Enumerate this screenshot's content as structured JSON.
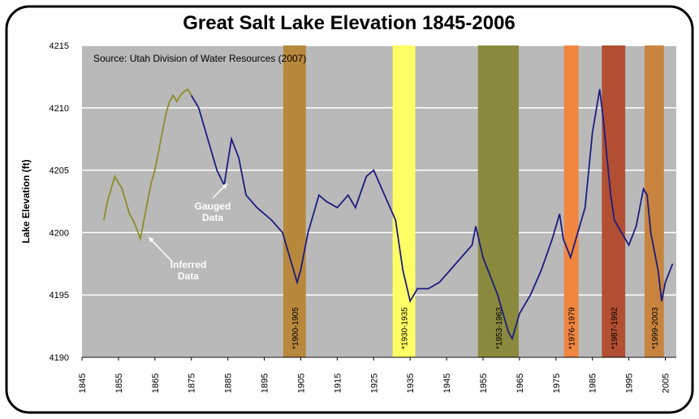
{
  "chart_data": {
    "type": "line",
    "title": "Great Salt Lake Elevation 1845-2006",
    "source": "Source: Utah Division of Water Resources (2007)",
    "ylabel": "Lake Elevation (ft)",
    "xlim": [
      1845,
      2008
    ],
    "ylim": [
      4190,
      4215
    ],
    "xticks": [
      1845,
      1855,
      1865,
      1875,
      1885,
      1895,
      1905,
      1915,
      1925,
      1935,
      1945,
      1955,
      1965,
      1975,
      1985,
      1995,
      2005
    ],
    "yticks": [
      4190,
      4195,
      4200,
      4205,
      4210,
      4215
    ],
    "grid": true,
    "background": "#b9b9b9",
    "series": [
      {
        "name": "Inferred",
        "color": "#8c8c2a",
        "x": [
          1851,
          1852,
          1853,
          1854,
          1855,
          1856,
          1857,
          1858,
          1859,
          1860,
          1861,
          1862,
          1863,
          1864,
          1865,
          1866,
          1867,
          1868,
          1869,
          1870,
          1871,
          1872,
          1873,
          1874,
          1875
        ],
        "values": [
          4201,
          4202.5,
          4203.5,
          4204.5,
          4204,
          4203.5,
          4202.5,
          4201.5,
          4201,
          4200.3,
          4199.5,
          4201,
          4202.5,
          4204,
          4205,
          4206.5,
          4208,
          4209.5,
          4210.5,
          4211,
          4210.5,
          4211,
          4211.3,
          4211.5,
          4211
        ]
      },
      {
        "name": "Gauged",
        "color": "#1c1c80",
        "x": [
          1875,
          1877,
          1880,
          1882,
          1884,
          1886,
          1888,
          1890,
          1893,
          1897,
          1900,
          1902,
          1904,
          1905,
          1907,
          1910,
          1912,
          1915,
          1918,
          1920,
          1923,
          1925,
          1928,
          1931,
          1933,
          1935,
          1937,
          1940,
          1943,
          1946,
          1949,
          1952,
          1953,
          1955,
          1957,
          1959,
          1962,
          1963,
          1965,
          1968,
          1971,
          1974,
          1976,
          1977,
          1979,
          1981,
          1983,
          1985,
          1987,
          1988,
          1989,
          1990,
          1991,
          1993,
          1995,
          1997,
          1999,
          2000,
          2001,
          2003,
          2004,
          2005,
          2007
        ],
        "values": [
          4211,
          4210,
          4207,
          4205,
          4203.8,
          4207.5,
          4206,
          4203,
          4202,
          4201,
          4200,
          4198,
          4196,
          4197,
          4200,
          4203,
          4202.5,
          4202,
          4203,
          4202,
          4204.5,
          4205,
          4203,
          4201,
          4197,
          4194.5,
          4195.5,
          4195.5,
          4196,
          4197,
          4198,
          4199,
          4200.5,
          4198,
          4196.5,
          4195,
          4192,
          4191.5,
          4193.5,
          4195,
          4197,
          4199.5,
          4201.5,
          4199.5,
          4198,
          4200,
          4202,
          4208,
          4211.5,
          4209,
          4206,
          4203,
          4201,
          4200,
          4199,
          4200.5,
          4203.5,
          4203,
          4200,
          4197,
          4194.5,
          4196,
          4197.5
        ]
      }
    ],
    "bands": [
      {
        "label": "*1900-1905",
        "start": 1900.2,
        "end": 1906.4,
        "color": "#b8883c"
      },
      {
        "label": "*1930-1935",
        "start": 1930.2,
        "end": 1936.4,
        "color": "#ffff66"
      },
      {
        "label": "*1953-1963",
        "start": 1953.6,
        "end": 1964.8,
        "color": "#8a8a3e"
      },
      {
        "label": "*1976-1979",
        "start": 1977.2,
        "end": 1981.2,
        "color": "#f08640"
      },
      {
        "label": "*1987-1992",
        "start": 1987.6,
        "end": 1994.0,
        "color": "#b24e32"
      },
      {
        "label": "*1999-2003",
        "start": 1999.3,
        "end": 2004.6,
        "color": "#c8843e"
      }
    ],
    "annotations": [
      {
        "lines": [
          "Gauged",
          "Data"
        ]
      },
      {
        "lines": [
          "Inferred",
          "Data"
        ]
      }
    ]
  }
}
